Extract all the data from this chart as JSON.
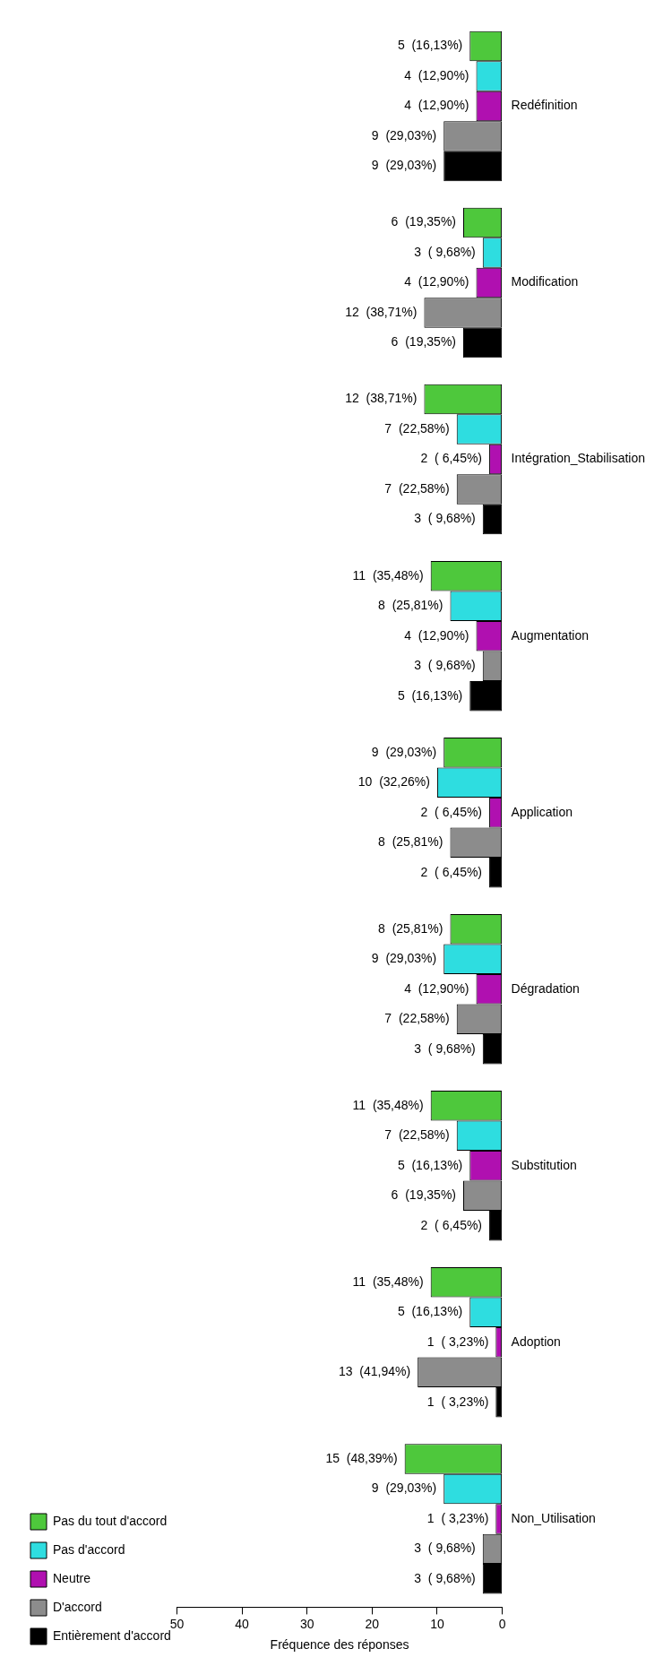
{
  "chart_data": {
    "type": "bar",
    "orientation": "horizontal",
    "xlabel": "Fréquence des réponses",
    "categories": [
      "Redéfinition",
      "Modification",
      "Intégration_Stabilisation",
      "Augmentation",
      "Application",
      "Dégradation",
      "Substitution",
      "Adoption",
      "Non_Utilisation"
    ],
    "series": [
      {
        "name": "Pas du tout d'accord",
        "color": "#4ec83c",
        "values": [
          5,
          6,
          12,
          11,
          9,
          8,
          11,
          11,
          15
        ],
        "value_labels": [
          "5  (16,13%)",
          "6  (19,35%)",
          "12  (38,71%)",
          "11  (35,48%)",
          "9  (29,03%)",
          "8  (25,81%)",
          "11  (35,48%)",
          "11  (35,48%)",
          "15  (48,39%)"
        ]
      },
      {
        "name": "Pas d'accord",
        "color": "#2edde0",
        "values": [
          4,
          3,
          7,
          8,
          10,
          9,
          7,
          5,
          9
        ],
        "value_labels": [
          "4  (12,90%)",
          "3  ( 9,68%)",
          "7  (22,58%)",
          "8  (25,81%)",
          "10  (32,26%)",
          "9  (29,03%)",
          "7  (22,58%)",
          "5  (16,13%)",
          "9  (29,03%)"
        ]
      },
      {
        "name": "Neutre",
        "color": "#b010b0",
        "values": [
          4,
          4,
          2,
          4,
          2,
          4,
          5,
          1,
          1
        ],
        "value_labels": [
          "4  (12,90%)",
          "4  (12,90%)",
          "2  ( 6,45%)",
          "4  (12,90%)",
          "2  ( 6,45%)",
          "4  (12,90%)",
          "5  (16,13%)",
          "1  ( 3,23%)",
          "1  ( 3,23%)"
        ]
      },
      {
        "name": "D'accord",
        "color": "#8c8c8c",
        "values": [
          9,
          12,
          7,
          3,
          8,
          7,
          6,
          13,
          3
        ],
        "value_labels": [
          "9  (29,03%)",
          "12  (38,71%)",
          "7  (22,58%)",
          "3  ( 9,68%)",
          "8  (25,81%)",
          "7  (22,58%)",
          "6  (19,35%)",
          "13  (41,94%)",
          "3  ( 9,68%)"
        ]
      },
      {
        "name": "Entièrement d'accord",
        "color": "#000000",
        "values": [
          9,
          6,
          3,
          5,
          2,
          3,
          2,
          1,
          3
        ],
        "value_labels": [
          "9  (29,03%)",
          "6  (19,35%)",
          "3  ( 9,68%)",
          "5  (16,13%)",
          "2  ( 6,45%)",
          "3  ( 9,68%)",
          "2  ( 6,45%)",
          "1  ( 3,23%)",
          "3  ( 9,68%)"
        ]
      }
    ],
    "xlim": [
      50,
      0
    ],
    "xticks": [
      50,
      40,
      30,
      20,
      10,
      0
    ],
    "grid": false,
    "legend": "bottom left"
  }
}
